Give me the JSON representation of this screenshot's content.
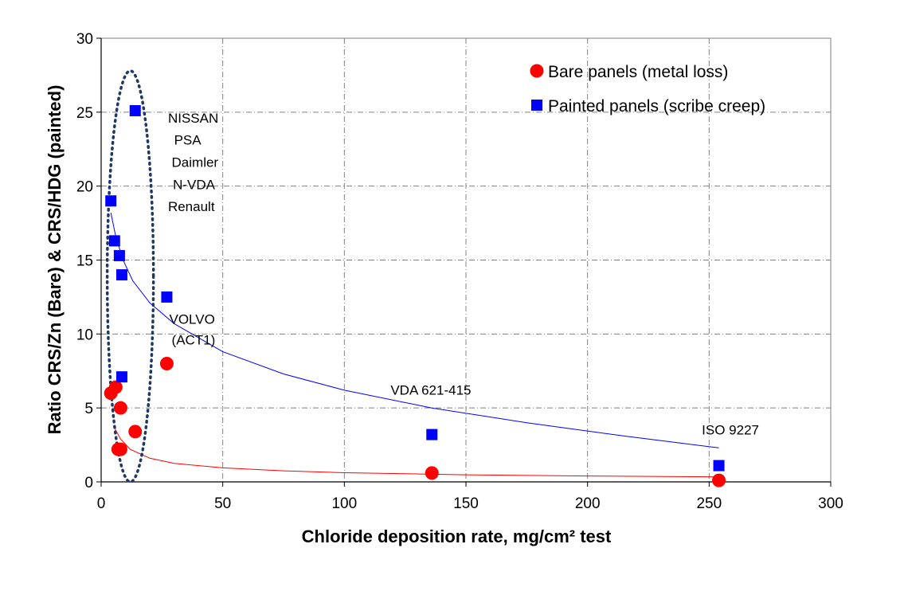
{
  "chart_data": {
    "type": "scatter",
    "xlabel": "Chloride deposition rate, mg/cm² test",
    "ylabel": "Ratio CRS/Zn (Bare)   & CRS/HDG (painted)",
    "xlim": [
      0,
      300
    ],
    "ylim": [
      0,
      30
    ],
    "x_ticks": [
      "0",
      "50",
      "100",
      "150",
      "200",
      "250",
      "300"
    ],
    "y_ticks": [
      "0",
      "5",
      "10",
      "15",
      "20",
      "25",
      "30"
    ],
    "grid": true,
    "legend_position": "top-right",
    "series": [
      {
        "name": "Bare panels  (metal loss)",
        "color": "#ff0000",
        "marker": "circle",
        "points": [
          {
            "x": 4,
            "y": 6.0
          },
          {
            "x": 6,
            "y": 6.4
          },
          {
            "x": 8,
            "y": 5.0
          },
          {
            "x": 7,
            "y": 2.2
          },
          {
            "x": 8,
            "y": 2.2
          },
          {
            "x": 14,
            "y": 3.4
          },
          {
            "x": 27,
            "y": 8.0
          },
          {
            "x": 136,
            "y": 0.6
          },
          {
            "x": 254,
            "y": 0.1
          }
        ],
        "trend": [
          [
            5,
            3.8
          ],
          [
            8,
            2.9
          ],
          [
            12,
            2.2
          ],
          [
            20,
            1.6
          ],
          [
            30,
            1.25
          ],
          [
            50,
            0.95
          ],
          [
            75,
            0.75
          ],
          [
            100,
            0.62
          ],
          [
            150,
            0.48
          ],
          [
            200,
            0.4
          ],
          [
            254,
            0.34
          ]
        ]
      },
      {
        "name": "Painted panels (scribe creep)",
        "color": "#0000ff",
        "marker": "square",
        "points": [
          {
            "x": 4,
            "y": 19.0
          },
          {
            "x": 5.5,
            "y": 16.3
          },
          {
            "x": 7.5,
            "y": 15.3
          },
          {
            "x": 8.5,
            "y": 14.0
          },
          {
            "x": 8.5,
            "y": 7.1
          },
          {
            "x": 14,
            "y": 25.1
          },
          {
            "x": 27,
            "y": 12.5
          },
          {
            "x": 136,
            "y": 3.2
          },
          {
            "x": 254,
            "y": 1.1
          }
        ],
        "trend": [
          [
            4,
            18.2
          ],
          [
            6,
            16.6
          ],
          [
            9,
            15.0
          ],
          [
            13,
            13.6
          ],
          [
            20,
            12.1
          ],
          [
            30,
            10.7
          ],
          [
            50,
            8.8
          ],
          [
            75,
            7.3
          ],
          [
            100,
            6.2
          ],
          [
            136,
            5.0
          ],
          [
            175,
            4.0
          ],
          [
            215,
            3.1
          ],
          [
            254,
            2.3
          ]
        ]
      }
    ],
    "annotations": [
      {
        "text": "NISSAN",
        "x": 27.5,
        "y": 24.3
      },
      {
        "text": "PSA",
        "x": 30,
        "y": 22.8
      },
      {
        "text": "Daimler",
        "x": 29,
        "y": 21.3
      },
      {
        "text": "N-VDA",
        "x": 29.5,
        "y": 19.8
      },
      {
        "text": "Renault",
        "x": 27.5,
        "y": 18.3
      },
      {
        "text": "VOLVO",
        "x": 28,
        "y": 10.7
      },
      {
        "text": "(ACT1)",
        "x": 29,
        "y": 9.3
      },
      {
        "text": "VDA 621-415",
        "x": 119,
        "y": 5.9
      },
      {
        "text": "ISO 9227",
        "x": 247,
        "y": 3.2
      }
    ],
    "highlight_ellipse": {
      "cx": 12,
      "cy": 13.9,
      "rx": 9.5,
      "ry": 13.9
    }
  }
}
